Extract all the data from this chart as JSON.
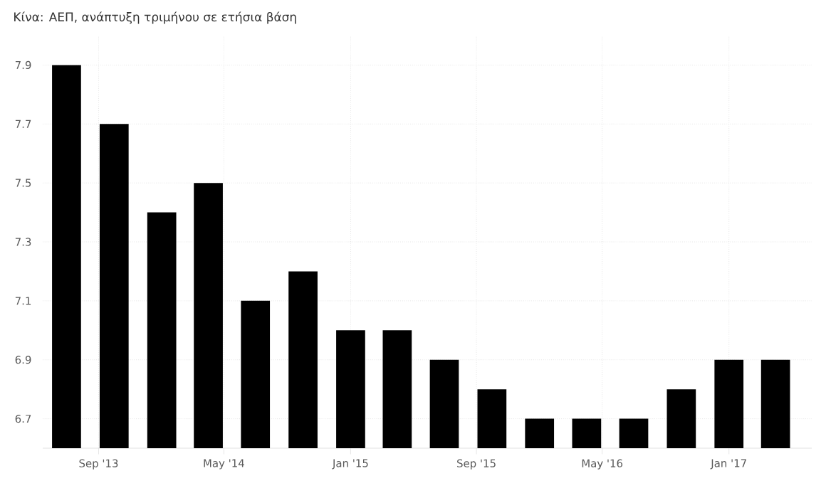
{
  "chart_data": {
    "type": "bar",
    "title": "Κίνα: ΑΕΠ, ανάπτυξη τριμήνου σε ετήσια βάση",
    "x": [
      "2013-07",
      "2013-10",
      "2014-01",
      "2014-04",
      "2014-07",
      "2014-10",
      "2015-01",
      "2015-04",
      "2015-07",
      "2015-10",
      "2016-01",
      "2016-04",
      "2016-07",
      "2016-10",
      "2017-01",
      "2017-04"
    ],
    "values": [
      7.9,
      7.7,
      7.4,
      7.5,
      7.1,
      7.2,
      7.0,
      7.0,
      6.9,
      6.8,
      6.7,
      6.7,
      6.7,
      6.8,
      6.9,
      6.9
    ],
    "color": "#000000",
    "xlim": [
      "2013-05-16",
      "2017-06-10"
    ],
    "xticks": [
      {
        "value": "2013-09",
        "label": "Sep '13"
      },
      {
        "value": "2014-05",
        "label": "May '14"
      },
      {
        "value": "2015-01",
        "label": "Jan '15"
      },
      {
        "value": "2015-09",
        "label": "Sep '15"
      },
      {
        "value": "2016-05",
        "label": "May '16"
      },
      {
        "value": "2017-01",
        "label": "Jan '17"
      }
    ],
    "ylim": [
      6.6,
      8.0
    ],
    "yticks": [
      6.7,
      6.9,
      7.1,
      7.3,
      7.5,
      7.7,
      7.9
    ],
    "grid": true
  }
}
